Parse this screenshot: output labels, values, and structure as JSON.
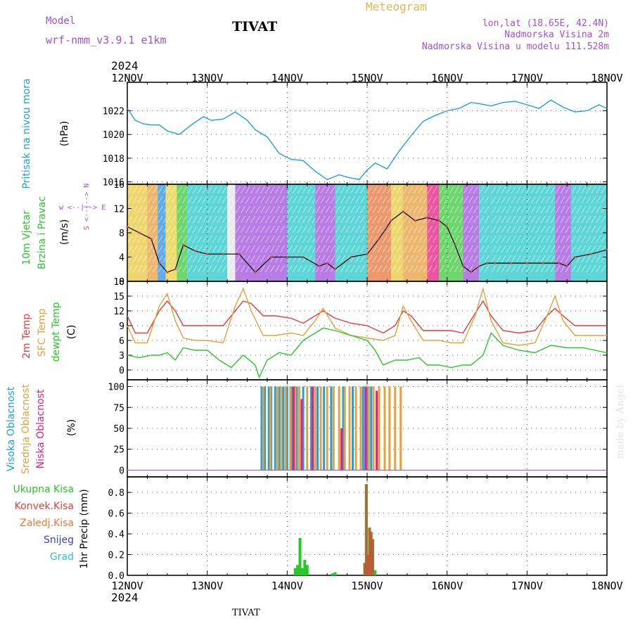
{
  "header": {
    "model_label": "Model",
    "model_name": "wrf-nmm_v3.9.1 e1km",
    "station": "TIVAT",
    "title": "Meteogram",
    "coords": "lon,lat (18.65E, 42.4N)",
    "altitude": "Nadmorska Visina 2m",
    "model_altitude": "Nadmorska Visina u modelu 111.528m"
  },
  "footer": {
    "station": "TIVAT",
    "credit": "made by Angel"
  },
  "time_axis": {
    "year": "2024",
    "ticks": [
      "12NOV",
      "13NOV",
      "14NOV",
      "15NOV",
      "16NOV",
      "17NOV",
      "18NOV"
    ]
  },
  "colors": {
    "pressure": "#1ea0e6",
    "temp2m": "#e63c3c",
    "sfc_temp": "#e6a03c",
    "dewpoint": "#28c828",
    "cloud_high": "#1ea0e6",
    "cloud_mid": "#e6a03c",
    "cloud_low": "#e61e82",
    "precip_total": "#28c828",
    "precip_conv": "#e63c3c",
    "precip_frz": "#f07830",
    "precip_snow": "#3c3ce6",
    "precip_grad": "#28c8c8",
    "wind_label": "#28c828",
    "compass": "#a050dc",
    "header_purple": "#a050dc",
    "header_orange": "#e6b450"
  },
  "chart_data": [
    {
      "type": "line",
      "panel": "pressure",
      "ylabel": "Pritisak na nivou mora",
      "unit": "(hPa)",
      "ylim": [
        1015.8,
        1024.4
      ],
      "yticks": [
        1016,
        1018,
        1020,
        1022
      ],
      "series": [
        {
          "color_key": "pressure",
          "x": [
            0,
            0.1,
            0.2,
            0.3,
            0.4,
            0.5,
            0.65,
            0.8,
            0.95,
            1.05,
            1.2,
            1.35,
            1.5,
            1.6,
            1.75,
            1.9,
            2.05,
            2.2,
            2.35,
            2.5,
            2.65,
            2.75,
            2.9,
            3.0,
            3.1,
            3.25,
            3.4,
            3.55,
            3.7,
            3.85,
            4.0,
            4.15,
            4.3,
            4.4,
            4.55,
            4.7,
            4.85,
            5.0,
            5.15,
            5.3,
            5.45,
            5.6,
            5.75,
            5.9,
            6.0
          ],
          "y": [
            1022.2,
            1021.2,
            1020.9,
            1020.8,
            1020.8,
            1020.3,
            1020.0,
            1020.8,
            1021.5,
            1021.2,
            1021.3,
            1021.9,
            1021.2,
            1020.4,
            1019.8,
            1018.4,
            1017.9,
            1017.8,
            1016.9,
            1016.2,
            1016.6,
            1016.4,
            1016.2,
            1017.0,
            1017.6,
            1017.1,
            1018.6,
            1019.9,
            1021.1,
            1021.6,
            1022.0,
            1022.2,
            1022.7,
            1022.6,
            1022.4,
            1022.7,
            1022.8,
            1022.5,
            1022.2,
            1022.9,
            1022.3,
            1021.9,
            1022.0,
            1022.5,
            1022.2
          ]
        }
      ]
    },
    {
      "type": "line",
      "panel": "wind",
      "ylabel": "10m Vjetar",
      "ylabel2": "Brzina i Pravac",
      "unit": "(m/s)",
      "ylim": [
        0,
        16
      ],
      "yticks": [
        0,
        4,
        8,
        12,
        16
      ],
      "compass_label": "w <--|--> E",
      "compass_label2": "S <--|--> N",
      "series": [
        {
          "color_key": "wind",
          "x": [
            0,
            0.15,
            0.3,
            0.4,
            0.5,
            0.6,
            0.7,
            0.85,
            1.0,
            1.2,
            1.4,
            1.6,
            1.8,
            2.0,
            2.2,
            2.4,
            2.5,
            2.6,
            2.8,
            3.0,
            3.15,
            3.3,
            3.45,
            3.6,
            3.75,
            3.9,
            4.0,
            4.1,
            4.2,
            4.3,
            4.4,
            4.5,
            4.6,
            4.8,
            5.0,
            5.2,
            5.4,
            5.5,
            5.6,
            5.8,
            6.0
          ],
          "y": [
            9,
            8,
            7,
            3,
            1.5,
            2,
            6,
            5,
            4.5,
            4.5,
            4.5,
            1.5,
            4,
            4,
            4,
            2.5,
            3,
            2,
            4,
            4.5,
            7,
            10,
            11.5,
            10,
            10.5,
            10,
            9,
            6,
            2.5,
            1.5,
            2.5,
            3,
            3,
            3,
            3,
            3,
            3,
            2.5,
            4,
            4.5,
            5.2
          ]
        }
      ]
    },
    {
      "type": "line",
      "panel": "temperature",
      "ylabel": "2m Temp",
      "ylabel2": "SFC Temp",
      "ylabel3": "dewpt Temp",
      "unit": "(C)",
      "ylim": [
        -2,
        18
      ],
      "yticks": [
        0,
        3,
        6,
        9,
        12,
        15,
        18
      ],
      "series": [
        {
          "color_key": "temp2m",
          "x": [
            0,
            0.1,
            0.25,
            0.4,
            0.5,
            0.6,
            0.7,
            0.85,
            1.0,
            1.2,
            1.35,
            1.45,
            1.55,
            1.7,
            1.85,
            2.05,
            2.2,
            2.35,
            2.45,
            2.6,
            2.8,
            3.0,
            3.2,
            3.35,
            3.45,
            3.55,
            3.7,
            3.9,
            4.05,
            4.2,
            4.35,
            4.45,
            4.55,
            4.7,
            4.9,
            5.1,
            5.25,
            5.35,
            5.45,
            5.6,
            5.8,
            6.0
          ],
          "y": [
            11,
            7.5,
            7.5,
            12,
            14,
            12,
            9,
            9,
            9,
            9,
            12,
            14,
            13.5,
            11,
            11,
            10.5,
            9.5,
            11,
            12,
            10.5,
            9.5,
            9,
            7.5,
            9,
            12,
            11,
            8,
            8,
            8,
            7.5,
            11.5,
            14,
            11,
            8,
            7.5,
            8,
            11,
            12.5,
            11,
            9,
            9,
            9
          ]
        },
        {
          "color_key": "sfc_temp",
          "x": [
            0,
            0.1,
            0.25,
            0.4,
            0.5,
            0.6,
            0.7,
            0.85,
            1.0,
            1.2,
            1.35,
            1.45,
            1.55,
            1.7,
            1.85,
            2.05,
            2.2,
            2.35,
            2.45,
            2.6,
            2.8,
            3.0,
            3.2,
            3.35,
            3.45,
            3.55,
            3.7,
            3.9,
            4.05,
            4.2,
            4.35,
            4.45,
            4.55,
            4.7,
            4.9,
            5.1,
            5.25,
            5.35,
            5.45,
            5.6,
            5.8,
            6.0
          ],
          "y": [
            9,
            5.5,
            5.5,
            13,
            15.5,
            10,
            6.5,
            6,
            6,
            5.5,
            13,
            16.5,
            12,
            7,
            7,
            7.5,
            7,
            10,
            12.5,
            8.5,
            7,
            6.5,
            6,
            7,
            13,
            10,
            6,
            6,
            5.5,
            5.5,
            11,
            16.5,
            10,
            5.5,
            5,
            5.5,
            11,
            15,
            10,
            7,
            7,
            7
          ]
        },
        {
          "color_key": "dewpoint",
          "x": [
            0,
            0.15,
            0.3,
            0.4,
            0.5,
            0.6,
            0.7,
            0.85,
            1.0,
            1.15,
            1.3,
            1.45,
            1.6,
            1.65,
            1.75,
            1.9,
            2.05,
            2.2,
            2.3,
            2.45,
            2.6,
            2.8,
            3.0,
            3.1,
            3.2,
            3.35,
            3.5,
            3.65,
            3.75,
            3.9,
            4.05,
            4.2,
            4.3,
            4.45,
            4.55,
            4.7,
            4.9,
            5.1,
            5.3,
            5.5,
            5.7,
            6.0
          ],
          "y": [
            3,
            2.5,
            3,
            3,
            3.5,
            2,
            4.5,
            4,
            4,
            2,
            0.5,
            3,
            1,
            -1.5,
            2,
            3.5,
            3,
            6,
            7,
            8.5,
            8,
            7,
            6,
            4,
            1,
            2,
            2,
            2.5,
            1,
            1,
            0.5,
            1,
            1,
            3,
            7.5,
            5,
            4,
            3.5,
            5,
            4.5,
            4.5,
            3.5
          ]
        }
      ]
    },
    {
      "type": "bar",
      "panel": "cloud",
      "ylabel": "Visoka Oblacnost",
      "ylabel2": "Srednja Oblacnost",
      "ylabel3": "Niska Oblacnost",
      "unit": "(%)",
      "ylim": [
        -8,
        108
      ],
      "yticks": [
        0,
        25,
        50,
        75,
        100
      ],
      "series": [
        {
          "name": "high",
          "color_key": "cloud_high",
          "x": [
            1.68,
            1.72,
            1.77,
            1.8,
            1.85,
            1.9,
            1.95,
            2.0,
            2.06,
            2.12,
            2.2,
            2.3,
            2.38,
            2.46,
            2.55,
            2.7,
            2.82,
            2.95,
            3.0,
            3.05
          ],
          "values": [
            100,
            100,
            100,
            100,
            100,
            100,
            100,
            100,
            100,
            100,
            100,
            100,
            100,
            100,
            100,
            100,
            100,
            100,
            100,
            100
          ]
        },
        {
          "name": "mid",
          "color_key": "cloud_mid",
          "x": [
            1.7,
            1.79,
            1.87,
            1.92,
            1.98,
            2.04,
            2.1,
            2.15,
            2.25,
            2.35,
            2.42,
            2.5,
            2.58,
            2.65,
            2.72,
            2.78,
            2.86,
            2.92,
            3.02,
            3.08,
            3.15,
            3.22,
            3.28,
            3.35,
            3.42
          ],
          "values": [
            100,
            100,
            100,
            100,
            100,
            100,
            100,
            100,
            100,
            100,
            100,
            100,
            100,
            100,
            100,
            100,
            100,
            100,
            100,
            100,
            100,
            100,
            100,
            100,
            100
          ]
        },
        {
          "name": "low",
          "color_key": "cloud_low",
          "x": [
            2.08,
            2.18,
            2.32,
            2.68,
            2.98,
            3.12
          ],
          "values": [
            100,
            85,
            100,
            50,
            100,
            95
          ]
        }
      ]
    },
    {
      "type": "bar",
      "panel": "precip",
      "ylabel": "1hr Precip (mm)",
      "ylim": [
        0,
        0.95
      ],
      "yticks": [
        0.0,
        0.2,
        0.4,
        0.6,
        0.8
      ],
      "legend": [
        "Ukupna Kisa",
        "Konvek.Kisa",
        "Zaledj.Kisa",
        "Snijeg",
        "Grad"
      ],
      "series": [
        {
          "name": "Ukupna Kisa",
          "color_key": "precip_total",
          "x": [
            2.1,
            2.13,
            2.16,
            2.19,
            2.22,
            2.25,
            2.57,
            2.6,
            2.97,
            2.99,
            3.01,
            3.03,
            3.05,
            3.07,
            3.1
          ],
          "values": [
            0.07,
            0.1,
            0.36,
            0.07,
            0.15,
            0.1,
            0.02,
            0.03,
            0.12,
            0.88,
            0.2,
            0.46,
            0.42,
            0.35,
            0.05
          ]
        },
        {
          "name": "Konvek.Kisa",
          "color_key": "precip_conv",
          "x": [
            2.97,
            2.99,
            3.01,
            3.03,
            3.05,
            3.07
          ],
          "values": [
            0.12,
            0.88,
            0.2,
            0.46,
            0.42,
            0.35
          ]
        }
      ]
    }
  ]
}
